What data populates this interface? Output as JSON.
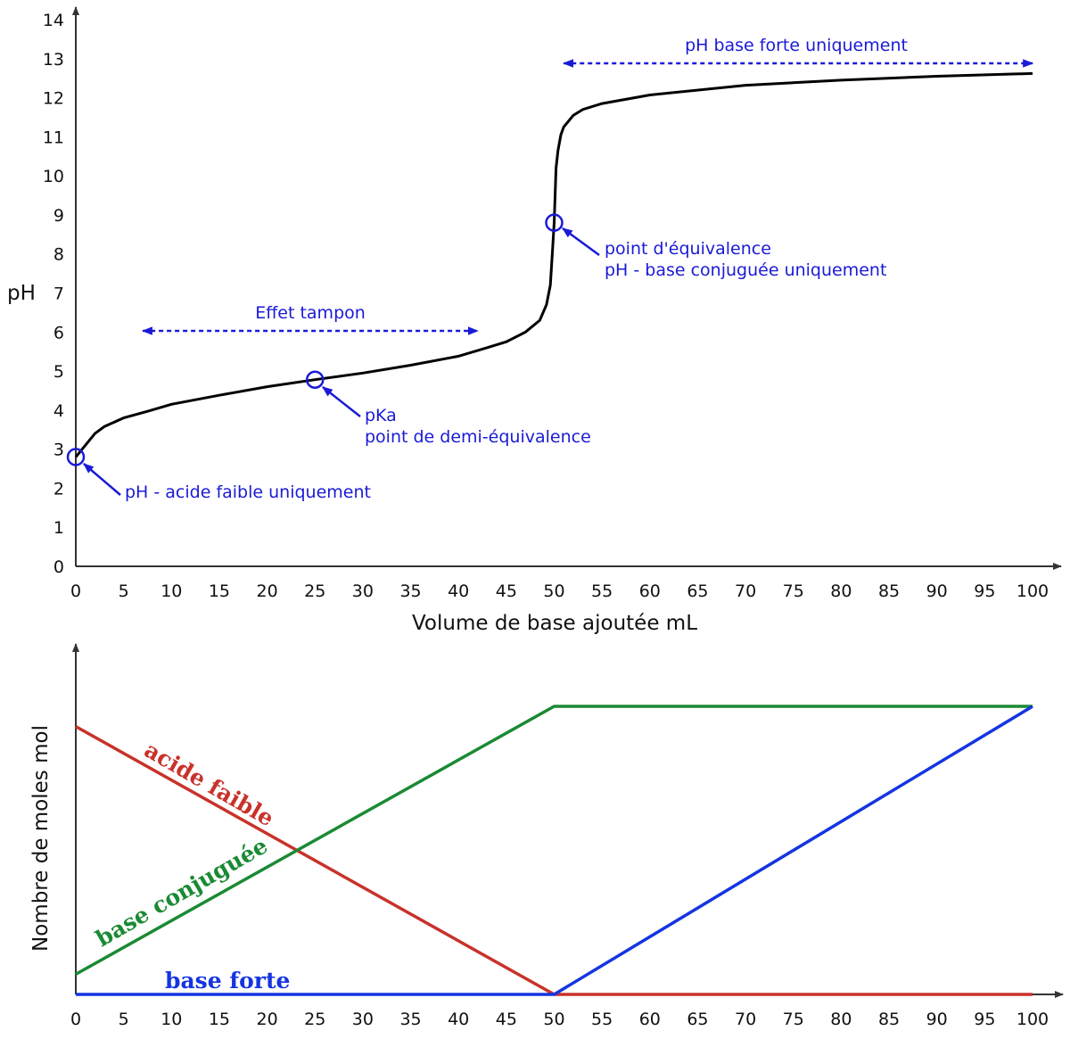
{
  "colors": {
    "axis": "#333333",
    "ph_curve": "#000000",
    "annotation": "#1a1ad6",
    "acid": "#c8322a",
    "conjugate": "#1a8a34",
    "strong_base": "#1535e0"
  },
  "chart_data": [
    {
      "type": "line",
      "xlabel": "Volume de base ajoutée mL",
      "ylabel": "pH",
      "xlim": [
        0,
        100
      ],
      "ylim": [
        0,
        14
      ],
      "x_ticks": [
        "0",
        "5",
        "10",
        "15",
        "20",
        "25",
        "30",
        "35",
        "40",
        "45",
        "50",
        "55",
        "60",
        "65",
        "70",
        "75",
        "80",
        "85",
        "90",
        "95",
        "100"
      ],
      "y_ticks": [
        "0",
        "1",
        "2",
        "3",
        "4",
        "5",
        "6",
        "7",
        "8",
        "9",
        "10",
        "11",
        "12",
        "13",
        "14"
      ],
      "grid": false,
      "series": [
        {
          "x": [
            0,
            1,
            2,
            3,
            5,
            7.5,
            10,
            15,
            20,
            25,
            30,
            35,
            40,
            43,
            45,
            47,
            48.5,
            49.2,
            49.6,
            49.8,
            50,
            50.2,
            50.4,
            50.7,
            51,
            52,
            53,
            55,
            60,
            70,
            80,
            90,
            100
          ],
          "y": [
            2.8,
            3.1,
            3.4,
            3.58,
            3.8,
            3.97,
            4.15,
            4.38,
            4.6,
            4.78,
            4.95,
            5.15,
            5.38,
            5.6,
            5.75,
            6.0,
            6.3,
            6.7,
            7.2,
            8.0,
            8.8,
            10.2,
            10.65,
            11.05,
            11.25,
            11.55,
            11.7,
            11.85,
            12.07,
            12.32,
            12.45,
            12.55,
            12.62
          ]
        }
      ],
      "markers": [
        {
          "x": 0,
          "y": 2.8
        },
        {
          "x": 25,
          "y": 4.78
        },
        {
          "x": 50,
          "y": 8.8
        }
      ],
      "annotations": {
        "weak_acid": "pH - acide faible uniquement",
        "pka": "pKa",
        "half_equivalence": "point de demi-équivalence",
        "equivalence": "point d'équivalence",
        "conjugate_only": "pH - base conjuguée uniquement",
        "buffer": "Effet tampon",
        "strong_base_only": "pH base forte uniquement"
      },
      "ranges": {
        "buffer": [
          7,
          42
        ],
        "strong_base_only": [
          51,
          100
        ]
      }
    },
    {
      "type": "line",
      "xlabel": "",
      "ylabel": "Nombre de moles mol",
      "xlim": [
        0,
        100
      ],
      "ylim": [
        0,
        1
      ],
      "x_ticks": [
        "0",
        "5",
        "10",
        "15",
        "20",
        "25",
        "30",
        "35",
        "40",
        "45",
        "50",
        "55",
        "60",
        "65",
        "70",
        "75",
        "80",
        "85",
        "90",
        "95",
        "100"
      ],
      "series": [
        {
          "name": "acide faible",
          "x": [
            0,
            50,
            100
          ],
          "y": [
            0.93,
            0,
            0
          ]
        },
        {
          "name": "base conjuguée",
          "x": [
            0,
            50,
            100
          ],
          "y": [
            0.07,
            1,
            1
          ]
        },
        {
          "name": "base forte",
          "x": [
            0,
            50,
            100
          ],
          "y": [
            0,
            0,
            1
          ]
        }
      ]
    }
  ]
}
